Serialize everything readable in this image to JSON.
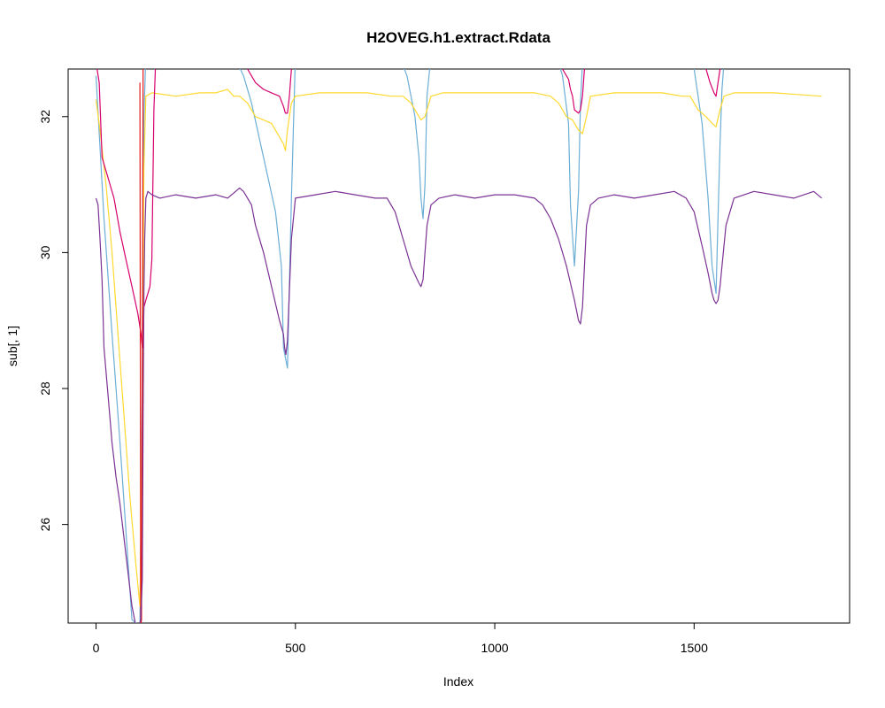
{
  "chart_data": {
    "type": "line",
    "title": "H2OVEG.h1.extract.Rdata",
    "xlabel": "Index",
    "ylabel": "sub[, 1]",
    "xlim": [
      -70,
      1890
    ],
    "ylim": [
      24.55,
      32.7
    ],
    "xticks": [
      0,
      500,
      1000,
      1500
    ],
    "yticks": [
      26,
      28,
      30,
      32
    ],
    "grid": false,
    "series": [
      {
        "color": "#6BAED6",
        "x": [
          0,
          20,
          40,
          60,
          75,
          90,
          110,
          118,
          120,
          125,
          140,
          200,
          260,
          300,
          330,
          345,
          370,
          390,
          420,
          450,
          465,
          470,
          480,
          490,
          500,
          560,
          680,
          720,
          760,
          780,
          800,
          810,
          815,
          820,
          825,
          830,
          840,
          850,
          900,
          1050,
          1150,
          1170,
          1185,
          1190,
          1200,
          1210,
          1215,
          1220,
          1225,
          1240,
          1300,
          1420,
          1460,
          1480,
          1500,
          1520,
          1535,
          1545,
          1555,
          1560,
          1565,
          1570,
          1575,
          1580,
          1600,
          1700,
          1820
        ],
        "y": [
          32.6,
          30.5,
          28.8,
          27.2,
          25.9,
          24.6,
          24.5,
          29.5,
          32.0,
          32.9,
          33.0,
          33.0,
          33.0,
          33.0,
          33.0,
          32.9,
          32.6,
          32.2,
          31.4,
          30.6,
          29.8,
          28.6,
          28.3,
          30.8,
          32.9,
          33.0,
          33.0,
          33.0,
          32.9,
          32.6,
          32.0,
          31.4,
          30.8,
          30.5,
          31.0,
          32.3,
          32.9,
          33.0,
          33.0,
          33.0,
          33.0,
          32.6,
          31.9,
          30.7,
          29.8,
          30.9,
          32.2,
          32.8,
          33.0,
          33.0,
          33.0,
          33.0,
          33.0,
          33.0,
          32.7,
          31.9,
          30.8,
          29.8,
          29.4,
          30.5,
          31.6,
          32.4,
          32.8,
          32.9,
          33.0,
          33.0,
          33.0
        ]
      },
      {
        "color": "#FFD92F",
        "x": [
          0,
          10,
          25,
          40,
          55,
          70,
          85,
          100,
          110,
          115,
          118,
          120,
          125,
          140,
          200,
          260,
          300,
          330,
          345,
          360,
          380,
          400,
          420,
          440,
          460,
          470,
          475,
          480,
          490,
          500,
          560,
          680,
          740,
          770,
          790,
          805,
          815,
          825,
          840,
          870,
          1000,
          1100,
          1140,
          1160,
          1180,
          1195,
          1210,
          1220,
          1230,
          1240,
          1300,
          1420,
          1470,
          1490,
          1510,
          1530,
          1545,
          1555,
          1565,
          1575,
          1600,
          1700,
          1820
        ],
        "y": [
          32.25,
          31.8,
          31.0,
          30.0,
          28.8,
          27.6,
          26.4,
          25.4,
          24.8,
          26.8,
          29.5,
          31.2,
          32.3,
          32.35,
          32.3,
          32.35,
          32.35,
          32.4,
          32.3,
          32.3,
          32.2,
          32.0,
          31.95,
          31.9,
          31.7,
          31.6,
          31.5,
          31.8,
          32.2,
          32.3,
          32.35,
          32.35,
          32.3,
          32.3,
          32.2,
          32.05,
          31.95,
          32.0,
          32.3,
          32.35,
          32.35,
          32.35,
          32.3,
          32.2,
          32.0,
          31.95,
          31.8,
          31.75,
          32.0,
          32.3,
          32.35,
          32.35,
          32.3,
          32.3,
          32.1,
          32.0,
          31.9,
          31.85,
          32.1,
          32.3,
          32.35,
          32.35,
          32.3
        ]
      },
      {
        "color": "#D6006F",
        "x": [
          0,
          8,
          15,
          30,
          45,
          60,
          75,
          90,
          105,
          113,
          116,
          118,
          120,
          125,
          135,
          140,
          145,
          150,
          155,
          370,
          380,
          390,
          400,
          420,
          440,
          460,
          470,
          475,
          480,
          485,
          490,
          500,
          1150,
          1160,
          1170,
          1180,
          1185,
          1190,
          1195,
          1200,
          1210,
          1215,
          1220,
          1225,
          1240,
          1500,
          1520,
          1530,
          1540,
          1550,
          1555,
          1560,
          1565,
          1570,
          1580
        ],
        "y": [
          32.8,
          32.5,
          31.4,
          31.1,
          30.8,
          30.3,
          29.9,
          29.5,
          29.1,
          28.8,
          28.6,
          28.6,
          29.2,
          29.3,
          29.5,
          29.9,
          32.1,
          32.9,
          33.0,
          33.0,
          32.7,
          32.6,
          32.5,
          32.4,
          32.35,
          32.3,
          32.15,
          32.05,
          32.05,
          32.3,
          32.7,
          33.0,
          33.0,
          32.9,
          32.7,
          32.6,
          32.55,
          32.4,
          32.3,
          32.1,
          32.05,
          32.1,
          32.3,
          32.7,
          33.0,
          33.0,
          32.9,
          32.7,
          32.5,
          32.35,
          32.3,
          32.5,
          32.7,
          32.8,
          33.0
        ]
      },
      {
        "color": "#E41A1C",
        "x": [
          110,
          112,
          114,
          116,
          118,
          120
        ],
        "y": [
          32.5,
          24.5,
          24.6,
          28.6,
          32.8,
          33.0
        ]
      },
      {
        "color": "#7B3294",
        "x": [
          0,
          5,
          10,
          15,
          20,
          30,
          40,
          50,
          60,
          70,
          80,
          90,
          100,
          108,
          112,
          116,
          118,
          120,
          122,
          125,
          130,
          140,
          160,
          200,
          250,
          300,
          330,
          350,
          360,
          370,
          380,
          390,
          400,
          420,
          440,
          460,
          470,
          473,
          476,
          480,
          490,
          500,
          550,
          600,
          650,
          700,
          730,
          750,
          770,
          790,
          810,
          815,
          820,
          825,
          830,
          840,
          860,
          900,
          950,
          1000,
          1050,
          1100,
          1120,
          1140,
          1160,
          1180,
          1200,
          1210,
          1215,
          1220,
          1225,
          1230,
          1240,
          1260,
          1300,
          1350,
          1400,
          1450,
          1480,
          1500,
          1520,
          1535,
          1545,
          1550,
          1555,
          1560,
          1565,
          1570,
          1580,
          1600,
          1650,
          1700,
          1750,
          1800,
          1820
        ],
        "y": [
          30.8,
          30.7,
          30.2,
          29.6,
          28.6,
          27.9,
          27.2,
          26.7,
          26.3,
          25.8,
          25.3,
          24.8,
          24.5,
          24.5,
          24.6,
          25.2,
          27.5,
          29.4,
          30.2,
          30.8,
          30.9,
          30.85,
          30.8,
          30.85,
          30.8,
          30.85,
          30.8,
          30.9,
          30.95,
          30.9,
          30.8,
          30.7,
          30.4,
          30.0,
          29.5,
          29.0,
          28.8,
          28.6,
          28.5,
          28.7,
          30.2,
          30.8,
          30.85,
          30.9,
          30.85,
          30.8,
          30.8,
          30.6,
          30.2,
          29.8,
          29.55,
          29.5,
          29.6,
          30.0,
          30.4,
          30.7,
          30.8,
          30.85,
          30.8,
          30.85,
          30.85,
          30.8,
          30.7,
          30.5,
          30.2,
          29.8,
          29.3,
          29.0,
          28.95,
          29.2,
          29.8,
          30.4,
          30.7,
          30.8,
          30.85,
          30.8,
          30.85,
          30.9,
          30.8,
          30.6,
          30.1,
          29.7,
          29.4,
          29.3,
          29.25,
          29.3,
          29.5,
          29.8,
          30.4,
          30.8,
          30.9,
          30.85,
          30.8,
          30.9,
          30.8
        ]
      }
    ]
  }
}
